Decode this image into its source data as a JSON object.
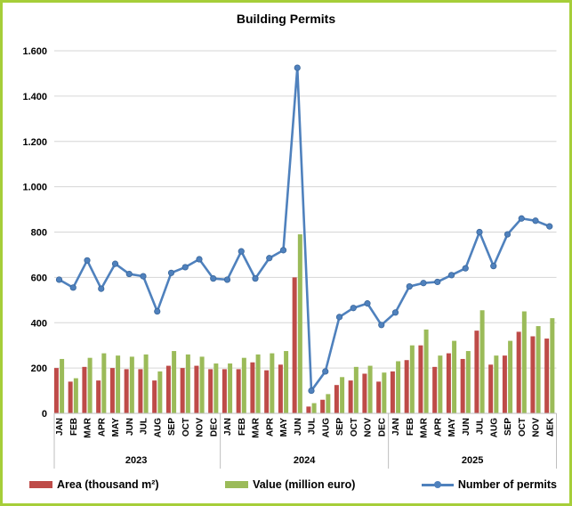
{
  "title": "Building Permits",
  "colors": {
    "area": "#BE4B48",
    "value": "#9BBB59",
    "permits": "#4F81BD",
    "permits_stroke": "#3A679C",
    "grid": "#D6D6D6",
    "separator": "#BFBFBF",
    "frame_border": "#A6CE39",
    "text": "#000000"
  },
  "chart_data": {
    "type": "combo-bar-line",
    "title": "Building Permits",
    "ylim": [
      0,
      1600
    ],
    "grid": true,
    "legend_position": "bottom",
    "y_ticks": [
      "0",
      "200",
      "400",
      "600",
      "800",
      "1.000",
      "1.200",
      "1.400",
      "1.600"
    ],
    "years": [
      {
        "label": "2023",
        "months": [
          "JAN",
          "FEB",
          "MAR",
          "APR",
          "MAY",
          "JUN",
          "JUL",
          "AUG",
          "SEP",
          "OCT",
          "NOV",
          "DEC"
        ]
      },
      {
        "label": "2024",
        "months": [
          "JAN",
          "FEB",
          "MAR",
          "APR",
          "MAY",
          "JUN",
          "JUL",
          "AUG",
          "SEP",
          "OCT",
          "NOV",
          "DEC"
        ]
      },
      {
        "label": "2025",
        "months": [
          "JAN",
          "FEB",
          "MAR",
          "APR",
          "MAY",
          "JUN",
          "JUL",
          "AUG",
          "SEP",
          "OCT",
          "NOV",
          "ΔEK"
        ]
      }
    ],
    "series": [
      {
        "name": "Area (thousand m²)",
        "type": "bar",
        "color": "#BE4B48",
        "values": [
          200,
          140,
          205,
          145,
          200,
          195,
          195,
          145,
          210,
          200,
          210,
          195,
          195,
          195,
          225,
          190,
          215,
          600,
          30,
          60,
          125,
          145,
          175,
          140,
          185,
          235,
          300,
          205,
          265,
          240,
          365,
          215,
          255,
          360,
          340,
          330
        ]
      },
      {
        "name": "Value (million euro)",
        "type": "bar",
        "color": "#9BBB59",
        "values": [
          240,
          155,
          245,
          265,
          255,
          250,
          260,
          185,
          275,
          260,
          250,
          220,
          220,
          245,
          260,
          265,
          275,
          790,
          45,
          85,
          160,
          205,
          210,
          180,
          230,
          300,
          370,
          255,
          320,
          275,
          455,
          255,
          320,
          450,
          385,
          420
        ]
      },
      {
        "name": "Number of permits",
        "type": "line",
        "color": "#4F81BD",
        "values": [
          590,
          555,
          675,
          550,
          660,
          615,
          605,
          450,
          620,
          645,
          680,
          595,
          590,
          715,
          595,
          685,
          720,
          1525,
          100,
          185,
          425,
          465,
          485,
          390,
          445,
          560,
          575,
          580,
          610,
          640,
          800,
          650,
          790,
          860,
          850,
          825
        ]
      }
    ]
  }
}
